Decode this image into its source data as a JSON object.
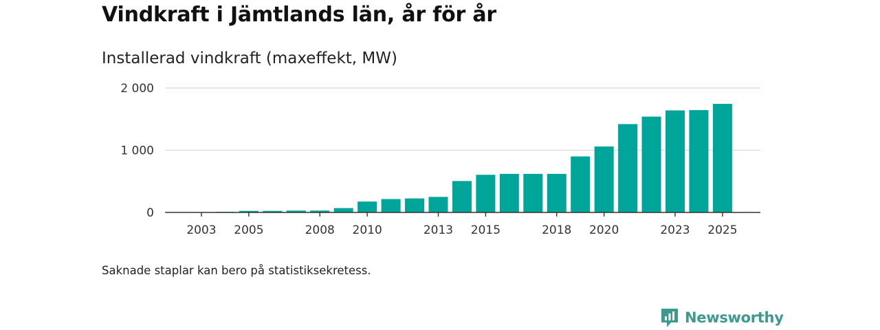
{
  "header": {
    "title": "Vindkraft i Jämtlands län, år för år",
    "subtitle": "Installerad vindkraft (maxeffekt, MW)"
  },
  "footer": {
    "note": "Saknade staplar kan bero på statistiksekretess.",
    "brand": "Newsworthy"
  },
  "colors": {
    "bar": "#00a59a",
    "grid": "#d9d9d9",
    "axis": "#333333",
    "brand": "#3c9a8e"
  },
  "chart_data": {
    "type": "bar",
    "title": "Vindkraft i Jämtlands län, år för år",
    "subtitle": "Installerad vindkraft (maxeffekt, MW)",
    "xlabel": "",
    "ylabel": "",
    "ylim": [
      0,
      2000
    ],
    "yticks": [
      {
        "value": 0,
        "label": "0"
      },
      {
        "value": 1000,
        "label": "1 000"
      },
      {
        "value": 2000,
        "label": "2 000"
      }
    ],
    "xticks": [
      "2003",
      "2005",
      "2008",
      "2010",
      "2013",
      "2015",
      "2018",
      "2020",
      "2023",
      "2025"
    ],
    "categories": [
      2003,
      2004,
      2005,
      2006,
      2007,
      2008,
      2009,
      2010,
      2011,
      2012,
      2013,
      2014,
      2015,
      2016,
      2017,
      2018,
      2019,
      2020,
      2021,
      2022,
      2023,
      2024,
      2025
    ],
    "values": [
      3,
      10,
      25,
      25,
      30,
      30,
      70,
      175,
      215,
      225,
      250,
      505,
      605,
      620,
      620,
      620,
      900,
      1060,
      1420,
      1540,
      1640,
      1645,
      1745
    ],
    "grid": true,
    "legend": "none"
  }
}
